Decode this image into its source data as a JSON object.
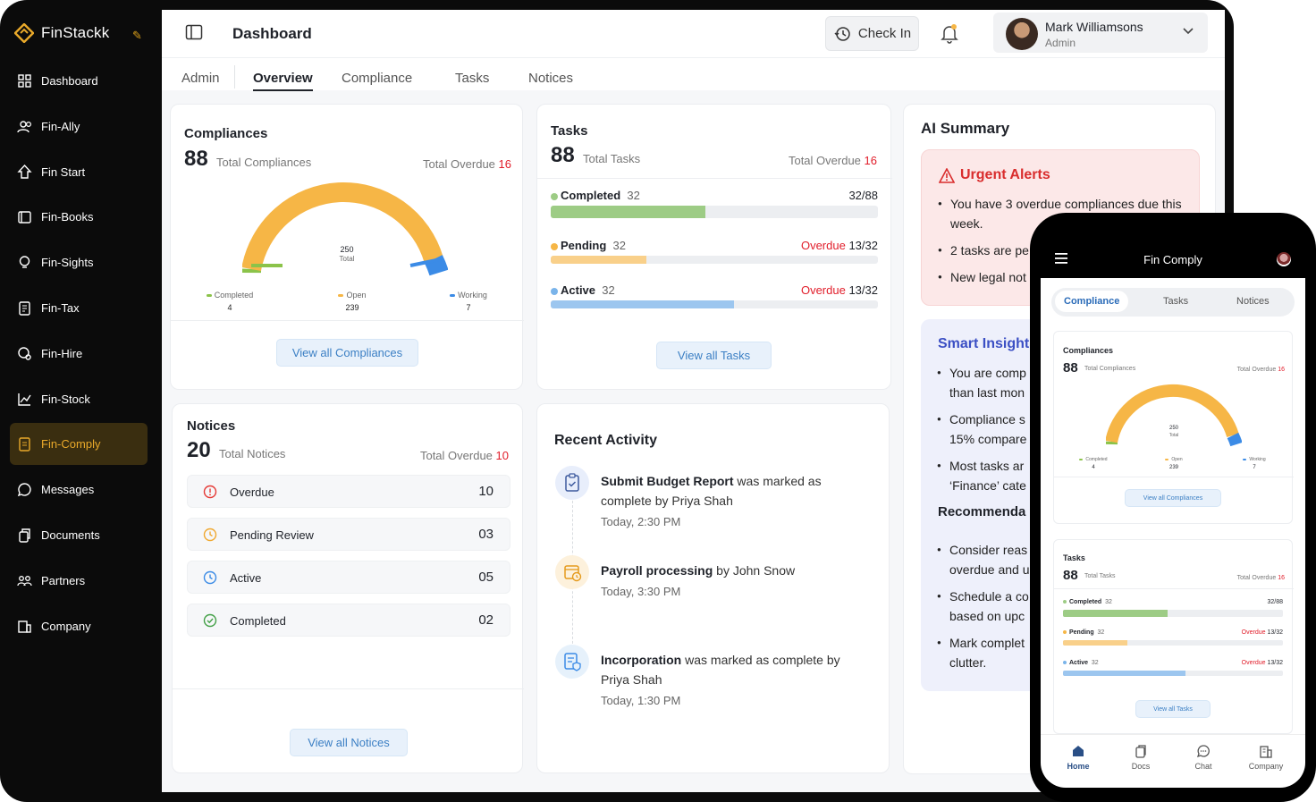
{
  "brand": {
    "name": "FinStackk",
    "accent": "#e9a92a"
  },
  "sidebar": {
    "items": [
      {
        "label": "Dashboard",
        "icon": "grid-icon"
      },
      {
        "label": "Fin-Ally",
        "icon": "users-icon"
      },
      {
        "label": "Fin Start",
        "icon": "rocket-icon"
      },
      {
        "label": "Fin-Books",
        "icon": "book-icon"
      },
      {
        "label": "Fin-Sights",
        "icon": "bulb-icon"
      },
      {
        "label": "Fin-Tax",
        "icon": "doc-icon"
      },
      {
        "label": "Fin-Hire",
        "icon": "hire-icon"
      },
      {
        "label": "Fin-Stock",
        "icon": "chart-icon"
      },
      {
        "label": "Fin-Comply",
        "icon": "comply-icon",
        "active": true
      },
      {
        "label": "Messages",
        "icon": "chat-icon"
      },
      {
        "label": "Documents",
        "icon": "copy-icon"
      },
      {
        "label": "Partners",
        "icon": "partners-icon"
      },
      {
        "label": "Company",
        "icon": "building-icon"
      }
    ]
  },
  "header": {
    "title": "Dashboard",
    "checkin_label": "Check In",
    "user_name": "Mark Williamsons",
    "user_role": "Admin"
  },
  "tabs": [
    "Admin",
    "Overview",
    "Compliance",
    "Tasks",
    "Notices"
  ],
  "active_tab": "Overview",
  "compliances": {
    "title": "Compliances",
    "total": "88",
    "total_label": "Total Compliances",
    "overdue_label": "Total Overdue",
    "overdue": "16",
    "gauge_total": "250",
    "gauge_total_label": "Total",
    "legend": [
      {
        "label": "Completed",
        "value": "4",
        "color": "#8bc34a"
      },
      {
        "label": "Open",
        "value": "239",
        "color": "#f6b646"
      },
      {
        "label": "Working",
        "value": "7",
        "color": "#3b8be6"
      }
    ],
    "button": "View all Compliances"
  },
  "tasks": {
    "title": "Tasks",
    "total": "88",
    "total_label": "Total Tasks",
    "overdue_label": "Total Overdue",
    "overdue": "16",
    "rows": [
      {
        "name": "Completed",
        "count": "32",
        "overdue_text": "",
        "ratio": "32/88",
        "fill": 0.4737,
        "color": "#9dcc85",
        "dot": "#9dcc85"
      },
      {
        "name": "Pending",
        "count": "32",
        "overdue_text": "Overdue",
        "ratio": "13/32",
        "fill": 0.2932,
        "color": "#f9d08a",
        "dot": "#f6b646"
      },
      {
        "name": "Active",
        "count": "32",
        "overdue_text": "Overdue",
        "ratio": "13/32",
        "fill": 0.5589,
        "color": "#9cc6ef",
        "dot": "#7ab4ea"
      }
    ],
    "button": "View all Tasks"
  },
  "notices": {
    "title": "Notices",
    "total": "20",
    "total_label": "Total Notices",
    "overdue_label": "Total Overdue",
    "overdue": "10",
    "rows": [
      {
        "label": "Overdue",
        "value": "10",
        "icon": "alert-circle-icon",
        "color": "#e53935"
      },
      {
        "label": "Pending Review",
        "value": "03",
        "icon": "clock-icon",
        "color": "#f0a830"
      },
      {
        "label": "Active",
        "value": "05",
        "icon": "clock-icon",
        "color": "#3b8be6"
      },
      {
        "label": "Completed",
        "value": "02",
        "icon": "check-circle-icon",
        "color": "#43a047"
      }
    ],
    "button": "View all Notices"
  },
  "activity": {
    "title": "Recent Activity",
    "items": [
      {
        "bold": "Submit Budget Report",
        "rest": " was marked as complete by Priya Shah",
        "time": "Today, 2:30 PM"
      },
      {
        "bold": "Payroll processing",
        "rest": " by John Snow",
        "time": "Today, 3:30 PM"
      },
      {
        "bold": "Incorporation",
        "rest": " was marked as complete by Priya Shah",
        "time": "Today, 1:30 PM"
      }
    ]
  },
  "ai_summary": {
    "title": "AI Summary",
    "alerts_title": "Urgent Alerts",
    "alerts": [
      "You have 3 overdue compliances due this week.",
      "2 tasks are pe",
      "New legal not"
    ],
    "insights_title": "Smart Insights",
    "insights": [
      "You are comp than last mon",
      "Compliance s 15% compare",
      "Most tasks ar ‘Finance’ cate"
    ],
    "recommend_title": "Recommenda",
    "recommend": [
      "Consider reas overdue and u",
      "Schedule a co based on upc",
      "Mark complet clutter."
    ]
  },
  "phone": {
    "title": "Fin Comply",
    "tabs": [
      "Compliance",
      "Tasks",
      "Notices"
    ],
    "compliances": {
      "title": "Compliances",
      "total": "88",
      "total_label": "Total Compliances",
      "overdue_label": "Total Overdue",
      "overdue": "16",
      "gauge_total": "250",
      "gauge_total_label": "Total",
      "legend": [
        {
          "label": "Completed",
          "value": "4"
        },
        {
          "label": "Open",
          "value": "239"
        },
        {
          "label": "Working",
          "value": "7"
        }
      ],
      "button": "View all Compliances"
    },
    "tasks": {
      "title": "Tasks",
      "total": "88",
      "total_label": "Total Tasks",
      "overdue_label": "Total Overdue",
      "overdue": "16",
      "rows": [
        {
          "name": "Completed",
          "count": "32",
          "overdue_text": "",
          "ratio": "32/88"
        },
        {
          "name": "Pending",
          "count": "32",
          "overdue_text": "Overdue",
          "ratio": "13/32"
        },
        {
          "name": "Active",
          "count": "32",
          "overdue_text": "Overdue",
          "ratio": "13/32"
        }
      ],
      "button": "View all Tasks"
    },
    "nav": [
      "Home",
      "Docs",
      "Chat",
      "Company"
    ]
  }
}
